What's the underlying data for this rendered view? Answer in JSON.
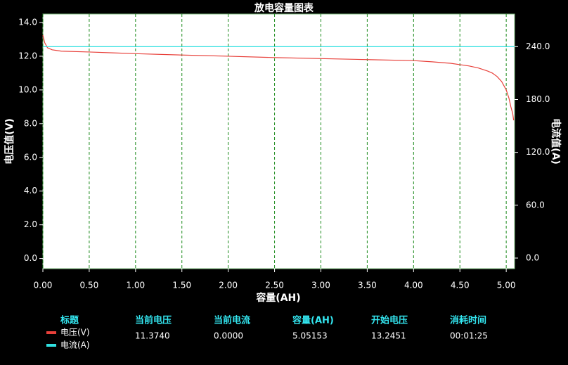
{
  "chart_data": {
    "type": "line",
    "title": "放电容量图表",
    "x_label": "容量(AH)",
    "y_label": "电压值(V)",
    "y2_label": "电流值(A)",
    "xlim": [
      0,
      5.09
    ],
    "ylim": [
      -0.6,
      14.5
    ],
    "y2lim": [
      -12,
      277
    ],
    "grid": true,
    "xticks": [
      {
        "value": 0,
        "label": "0.00"
      },
      {
        "value": 0.5,
        "label": "0.50"
      },
      {
        "value": 1,
        "label": "1.00"
      },
      {
        "value": 1.5,
        "label": "1.50"
      },
      {
        "value": 2,
        "label": "2.00"
      },
      {
        "value": 2.5,
        "label": "2.50"
      },
      {
        "value": 3,
        "label": "3.00"
      },
      {
        "value": 3.5,
        "label": "3.50"
      },
      {
        "value": 4,
        "label": "4.00"
      },
      {
        "value": 4.5,
        "label": "4.50"
      },
      {
        "value": 5,
        "label": "5.00"
      }
    ],
    "yticks": [
      {
        "value": 0,
        "label": "0.0"
      },
      {
        "value": 2,
        "label": "2.0"
      },
      {
        "value": 4,
        "label": "4.0"
      },
      {
        "value": 6,
        "label": "6.0"
      },
      {
        "value": 8,
        "label": "8.0"
      },
      {
        "value": 10,
        "label": "10.0"
      },
      {
        "value": 12,
        "label": "12.0"
      },
      {
        "value": 14,
        "label": "14.0"
      }
    ],
    "y2ticks": [
      {
        "value": 0,
        "label": "0.0"
      },
      {
        "value": 60,
        "label": "60.0"
      },
      {
        "value": 120,
        "label": "120.0"
      },
      {
        "value": 180,
        "label": "180.0"
      },
      {
        "value": 240,
        "label": "240.0"
      }
    ],
    "series": [
      {
        "name": "电压(V)",
        "color": "#e8403a",
        "x": [
          0,
          0.02,
          0.05,
          0.1,
          0.2,
          0.5,
          0.75,
          1.0,
          1.5,
          2.0,
          2.5,
          3.0,
          3.5,
          4.0,
          4.2,
          4.4,
          4.5,
          4.6,
          4.7,
          4.8,
          4.85,
          4.9,
          4.95,
          5.0,
          5.03,
          5.05,
          5.07,
          5.08
        ],
        "values": [
          13.25,
          12.8,
          12.5,
          12.38,
          12.3,
          12.25,
          12.2,
          12.15,
          12.07,
          12.0,
          11.92,
          11.86,
          11.8,
          11.74,
          11.67,
          11.58,
          11.5,
          11.42,
          11.3,
          11.12,
          11.0,
          10.8,
          10.5,
          10.0,
          9.5,
          9.0,
          8.6,
          8.2
        ]
      },
      {
        "name": "电流(A)",
        "color": "#30e0e0",
        "axis": "y2",
        "x": [
          0,
          5.09
        ],
        "values": [
          240,
          240
        ]
      }
    ]
  },
  "info_table": {
    "headers": [
      "标题",
      "当前电压",
      "当前电流",
      "容量(AH)",
      "开始电压",
      "消耗时间"
    ],
    "values": [
      "11.3740",
      "0.0000",
      "5.05153",
      "13.2451",
      "00:01:25"
    ]
  }
}
